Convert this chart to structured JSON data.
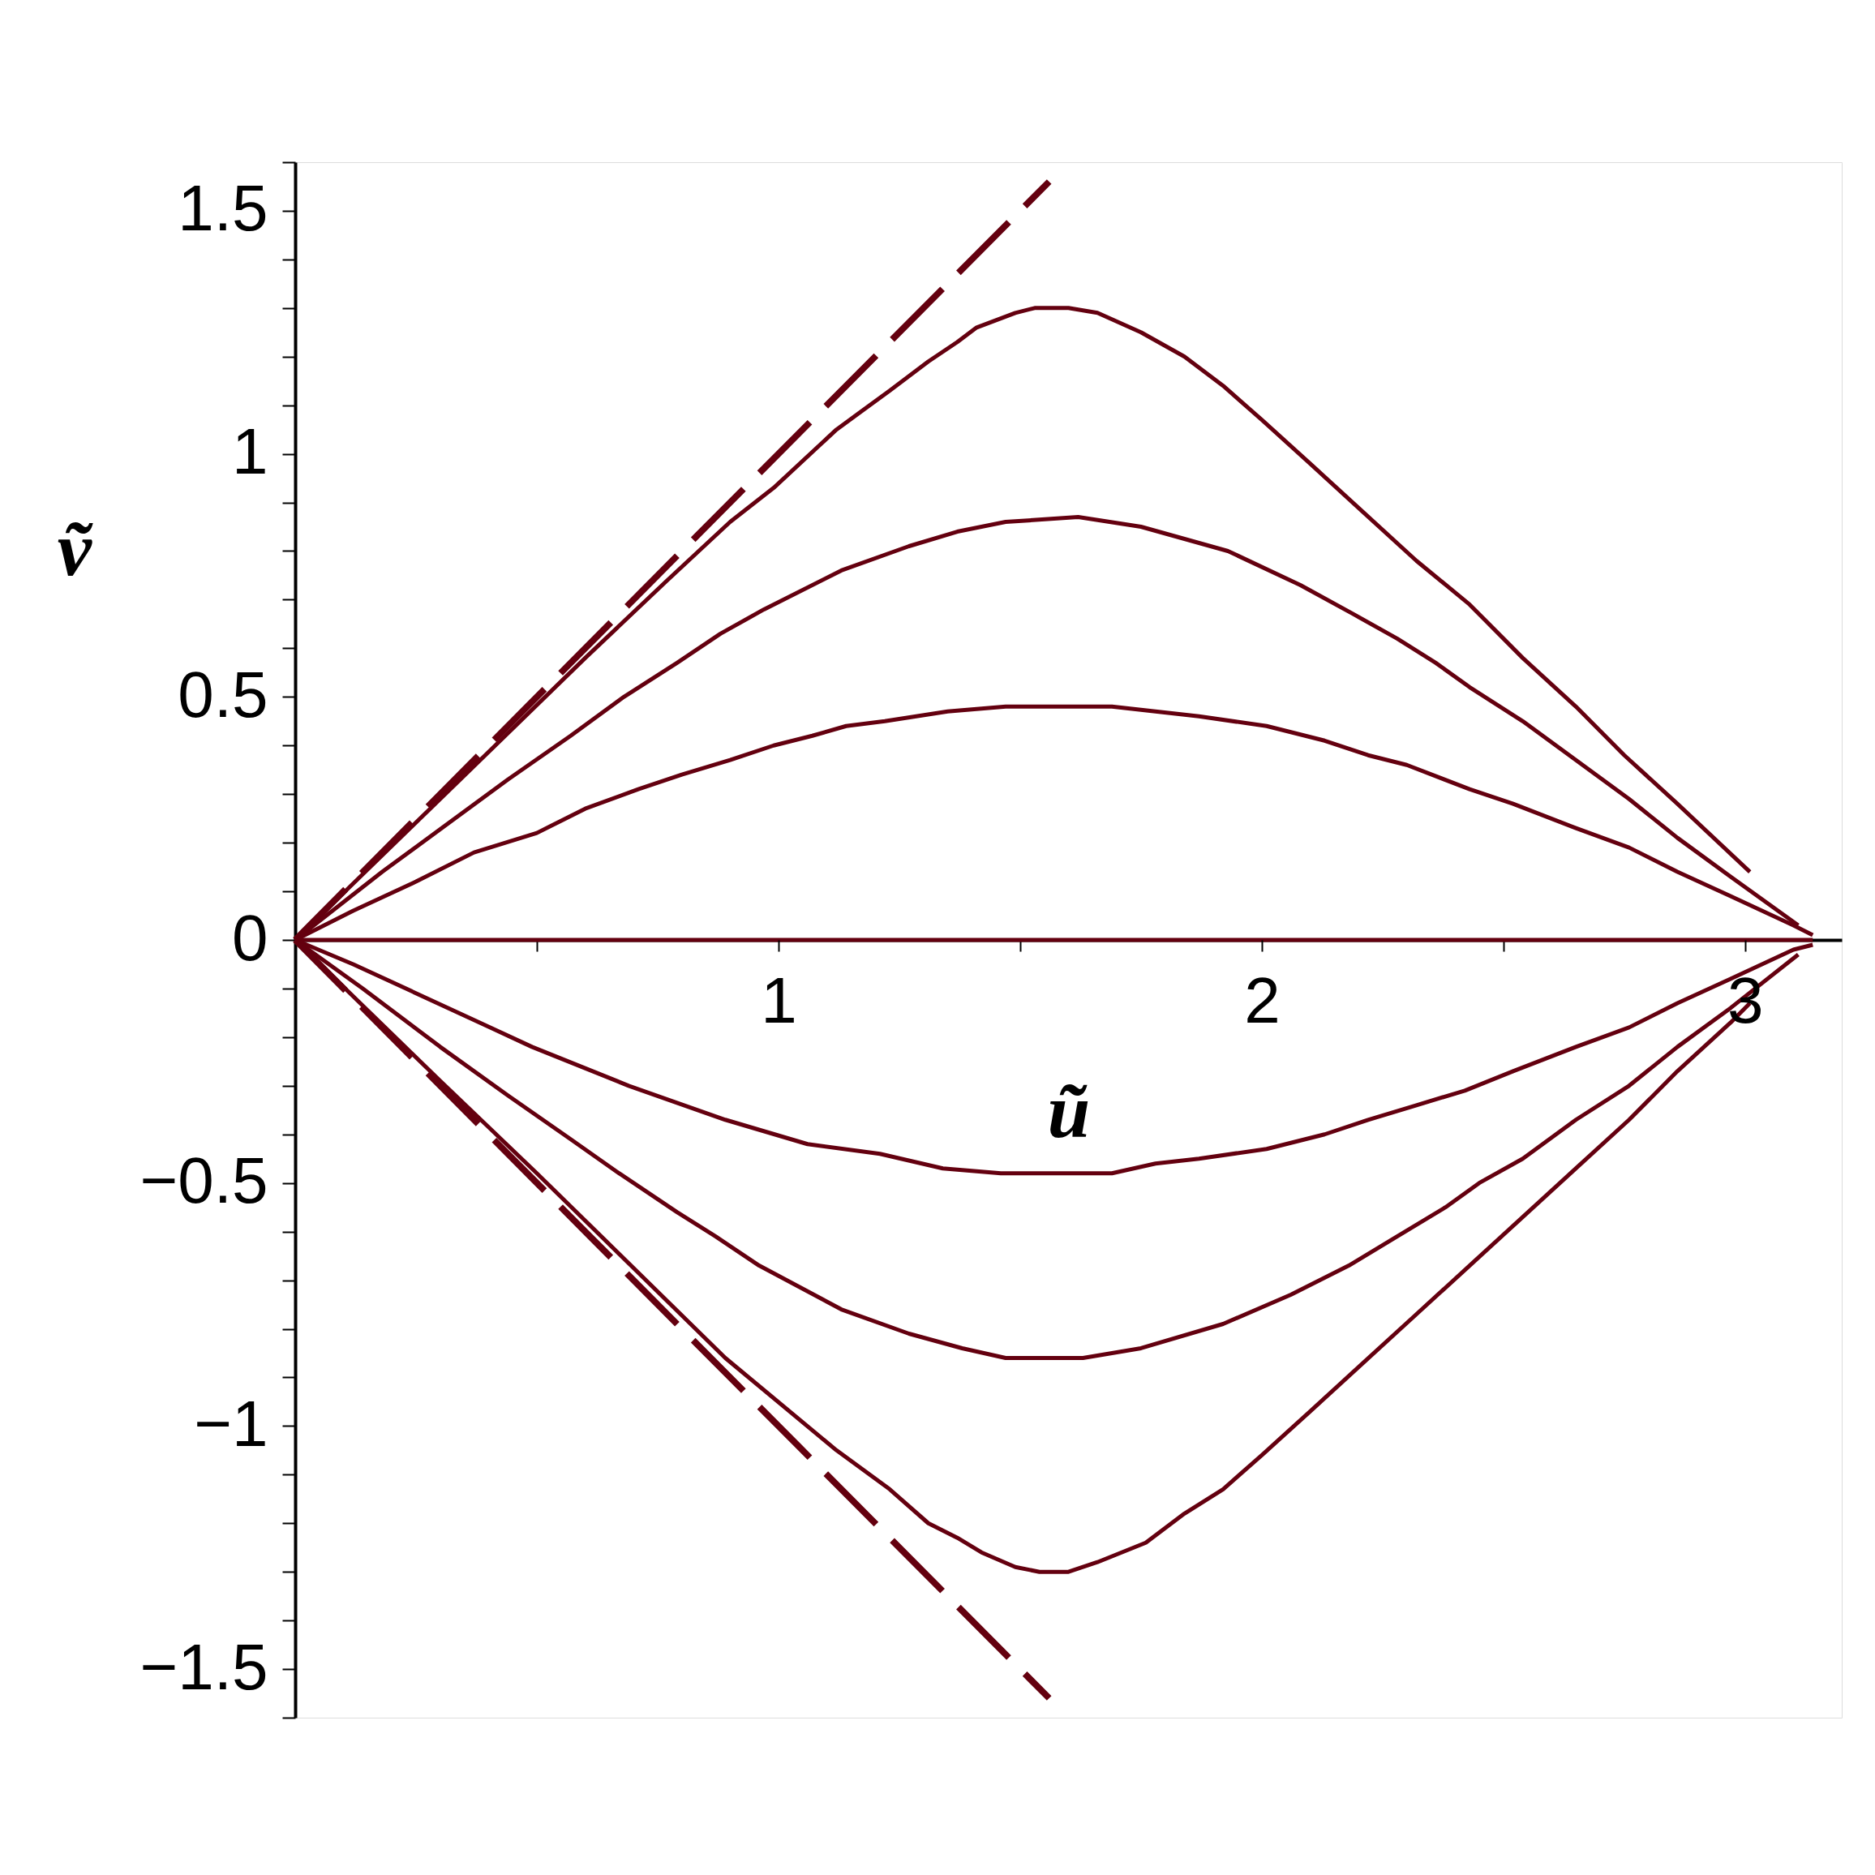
{
  "chart_data": {
    "type": "line",
    "xlabel": "ũ",
    "ylabel": "ṽ",
    "line_style": "solid",
    "grid": false,
    "xlim": [
      0,
      3.2
    ],
    "ylim": [
      -1.6,
      1.6
    ],
    "xticks": [
      {
        "value": 0.5,
        "label": null
      },
      1,
      {
        "value": 1.5,
        "label": null
      },
      2,
      {
        "value": 2.5,
        "label": null
      },
      3
    ],
    "yticks": [
      {
        "value": -1.6,
        "label": null
      },
      -1.5,
      {
        "value": -1.4,
        "label": null
      },
      {
        "value": -1.3,
        "label": null
      },
      {
        "value": -1.2,
        "label": null
      },
      {
        "value": -1.1,
        "label": null
      },
      -1,
      {
        "value": -0.9,
        "label": null
      },
      {
        "value": -0.8,
        "label": null
      },
      {
        "value": -0.7,
        "label": null
      },
      {
        "value": -0.6,
        "label": null
      },
      -0.5,
      {
        "value": -0.4,
        "label": null
      },
      {
        "value": -0.3,
        "label": null
      },
      {
        "value": -0.2,
        "label": null
      },
      {
        "value": -0.1,
        "label": null
      },
      0,
      {
        "value": 0.1,
        "label": null
      },
      {
        "value": 0.2,
        "label": null
      },
      {
        "value": 0.3,
        "label": null
      },
      {
        "value": 0.4,
        "label": null
      },
      0.5,
      {
        "value": 0.6,
        "label": null
      },
      {
        "value": 0.7,
        "label": null
      },
      {
        "value": 0.8,
        "label": null
      },
      {
        "value": 0.9,
        "label": null
      },
      1,
      {
        "value": 1.1,
        "label": null
      },
      {
        "value": 1.2,
        "label": null
      },
      {
        "value": 1.3,
        "label": null
      },
      {
        "value": 1.4,
        "label": null
      },
      1.5,
      {
        "value": 1.6,
        "label": null
      }
    ],
    "series": [
      {
        "color": "#64000f",
        "line_style": "dashed",
        "x": [
          0,
          1.56
        ],
        "values": [
          0,
          1.56
        ]
      },
      {
        "color": "#64000f",
        "line_style": "dashed",
        "x": [
          0,
          1.56
        ],
        "values": [
          0,
          -1.56
        ]
      },
      {
        "color": "#64000f",
        "x": [
          0,
          0.3,
          0.6,
          0.77,
          0.9,
          0.99,
          1.12,
          1.23,
          1.31,
          1.37,
          1.41,
          1.49,
          1.53,
          1.6,
          1.66,
          1.75,
          1.84,
          1.92,
          2.0,
          2.1,
          2.21,
          2.32,
          2.43,
          2.54,
          2.65,
          2.75,
          2.86,
          3.01
        ],
        "values": [
          0,
          0.29,
          0.58,
          0.74,
          0.86,
          0.93,
          1.05,
          1.13,
          1.19,
          1.23,
          1.26,
          1.29,
          1.3,
          1.3,
          1.29,
          1.25,
          1.2,
          1.14,
          1.07,
          0.98,
          0.88,
          0.78,
          0.69,
          0.58,
          0.48,
          0.38,
          0.28,
          0.14
        ]
      },
      {
        "color": "#64000f",
        "x": [
          0,
          0.18,
          0.44,
          0.57,
          0.68,
          0.79,
          0.88,
          0.97,
          1.13,
          1.27,
          1.37,
          1.47,
          1.62,
          1.75,
          1.93,
          2.08,
          2.19,
          2.28,
          2.36,
          2.43,
          2.54,
          2.65,
          2.76,
          2.86,
          2.97,
          3.11
        ],
        "values": [
          0,
          0.14,
          0.33,
          0.42,
          0.5,
          0.57,
          0.63,
          0.68,
          0.76,
          0.81,
          0.84,
          0.86,
          0.87,
          0.85,
          0.8,
          0.73,
          0.67,
          0.62,
          0.57,
          0.52,
          0.45,
          0.37,
          0.29,
          0.21,
          0.13,
          0.03
        ]
      },
      {
        "color": "#64000f",
        "x": [
          0,
          0.12,
          0.25,
          0.37,
          0.5,
          0.6,
          0.71,
          0.8,
          0.9,
          0.99,
          1.07,
          1.14,
          1.22,
          1.35,
          1.47,
          1.59,
          1.69,
          1.78,
          1.87,
          2.01,
          2.13,
          2.22,
          2.3,
          2.43,
          2.52,
          2.65,
          2.76,
          2.86,
          2.97,
          3.1,
          3.14
        ],
        "values": [
          0,
          0.06,
          0.12,
          0.18,
          0.22,
          0.27,
          0.31,
          0.34,
          0.37,
          0.4,
          0.42,
          0.44,
          0.45,
          0.47,
          0.48,
          0.48,
          0.48,
          0.47,
          0.46,
          0.44,
          0.41,
          0.38,
          0.36,
          0.31,
          0.28,
          0.23,
          0.19,
          0.14,
          0.09,
          0.03,
          0.01
        ]
      },
      {
        "color": "#64000f",
        "x": [
          0,
          3.14
        ],
        "values": [
          0,
          0
        ]
      },
      {
        "color": "#64000f",
        "x": [
          0,
          0.12,
          0.36,
          0.49,
          0.69,
          0.89,
          1.06,
          1.21,
          1.34,
          1.46,
          1.59,
          1.69,
          1.78,
          1.87,
          2.01,
          2.13,
          2.22,
          2.32,
          2.42,
          2.52,
          2.65,
          2.76,
          2.86,
          2.97,
          3.1,
          3.14
        ],
        "values": [
          0,
          -0.05,
          -0.16,
          -0.22,
          -0.3,
          -0.37,
          -0.42,
          -0.44,
          -0.47,
          -0.48,
          -0.48,
          -0.48,
          -0.46,
          -0.45,
          -0.43,
          -0.4,
          -0.37,
          -0.34,
          -0.31,
          -0.27,
          -0.22,
          -0.18,
          -0.13,
          -0.08,
          -0.02,
          -0.01
        ]
      },
      {
        "color": "#64000f",
        "x": [
          0,
          0.14,
          0.3,
          0.44,
          0.57,
          0.67,
          0.79,
          0.87,
          0.96,
          1.13,
          1.27,
          1.38,
          1.47,
          1.63,
          1.75,
          1.92,
          2.06,
          2.18,
          2.28,
          2.38,
          2.45,
          2.54,
          2.65,
          2.76,
          2.86,
          2.97,
          3.11
        ],
        "values": [
          0,
          -0.1,
          -0.22,
          -0.32,
          -0.41,
          -0.48,
          -0.56,
          -0.61,
          -0.67,
          -0.76,
          -0.81,
          -0.84,
          -0.86,
          -0.86,
          -0.84,
          -0.79,
          -0.73,
          -0.67,
          -0.61,
          -0.55,
          -0.5,
          -0.45,
          -0.37,
          -0.3,
          -0.22,
          -0.14,
          -0.03
        ]
      },
      {
        "color": "#64000f",
        "x": [
          0,
          0.3,
          0.5,
          0.89,
          1.12,
          1.23,
          1.31,
          1.37,
          1.42,
          1.49,
          1.54,
          1.6,
          1.66,
          1.76,
          1.84,
          1.92,
          2.0,
          2.1,
          2.21,
          2.32,
          2.43,
          2.54,
          2.65,
          2.76,
          2.86,
          2.97,
          3.01
        ],
        "values": [
          0,
          -0.29,
          -0.48,
          -0.86,
          -1.05,
          -1.13,
          -1.2,
          -1.23,
          -1.26,
          -1.29,
          -1.3,
          -1.3,
          -1.28,
          -1.24,
          -1.18,
          -1.13,
          -1.06,
          -0.97,
          -0.87,
          -0.77,
          -0.67,
          -0.57,
          -0.47,
          -0.37,
          -0.27,
          -0.17,
          -0.13
        ]
      }
    ]
  }
}
